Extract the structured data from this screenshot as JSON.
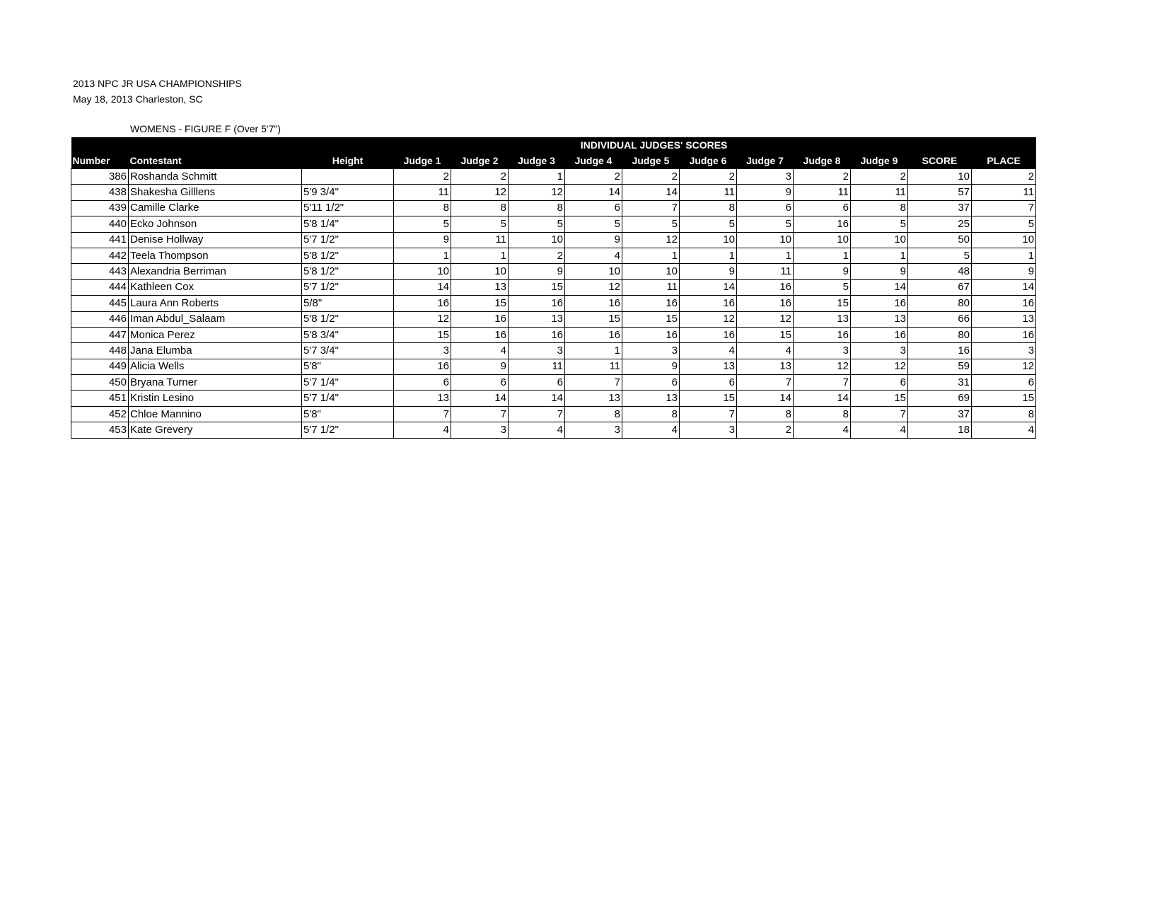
{
  "document": {
    "title": "2013 NPC JR USA CHAMPIONSHIPS",
    "subtitle": "May 18, 2013 Charleston, SC",
    "division": "WOMENS - FIGURE F (Over 5'7\")"
  },
  "table": {
    "group_header": "INDIVIDUAL JUDGES' SCORES",
    "columns": [
      "Number",
      "Contestant",
      "Height",
      "Judge 1",
      "Judge 2",
      "Judge 3",
      "Judge 4",
      "Judge 5",
      "Judge 6",
      "Judge 7",
      "Judge 8",
      "Judge 9",
      "SCORE",
      "PLACE"
    ],
    "rows": [
      [
        "386",
        "Roshanda Schmitt",
        "",
        "2",
        "2",
        "1",
        "2",
        "2",
        "2",
        "3",
        "2",
        "2",
        "10",
        "2"
      ],
      [
        "438",
        "Shakesha Gilllens",
        "5'9 3/4\"",
        "11",
        "12",
        "12",
        "14",
        "14",
        "11",
        "9",
        "11",
        "11",
        "57",
        "11"
      ],
      [
        "439",
        "Camille Clarke",
        "5'11 1/2\"",
        "8",
        "8",
        "8",
        "6",
        "7",
        "8",
        "6",
        "6",
        "8",
        "37",
        "7"
      ],
      [
        "440",
        "Ecko Johnson",
        "5'8 1/4\"",
        "5",
        "5",
        "5",
        "5",
        "5",
        "5",
        "5",
        "16",
        "5",
        "25",
        "5"
      ],
      [
        "441",
        "Denise Hollway",
        "5'7 1/2\"",
        "9",
        "11",
        "10",
        "9",
        "12",
        "10",
        "10",
        "10",
        "10",
        "50",
        "10"
      ],
      [
        "442",
        "Teela Thompson",
        "5'8 1/2\"",
        "1",
        "1",
        "2",
        "4",
        "1",
        "1",
        "1",
        "1",
        "1",
        "5",
        "1"
      ],
      [
        "443",
        "Alexandria Berriman",
        "5'8 1/2\"",
        "10",
        "10",
        "9",
        "10",
        "10",
        "9",
        "11",
        "9",
        "9",
        "48",
        "9"
      ],
      [
        "444",
        "Kathleen Cox",
        "5'7 1/2\"",
        "14",
        "13",
        "15",
        "12",
        "11",
        "14",
        "16",
        "5",
        "14",
        "67",
        "14"
      ],
      [
        "445",
        "Laura Ann Roberts",
        "5/8\"",
        "16",
        "15",
        "16",
        "16",
        "16",
        "16",
        "16",
        "15",
        "16",
        "80",
        "16"
      ],
      [
        "446",
        "Iman Abdul_Salaam",
        "5'8 1/2\"",
        "12",
        "16",
        "13",
        "15",
        "15",
        "12",
        "12",
        "13",
        "13",
        "66",
        "13"
      ],
      [
        "447",
        "Monica Perez",
        "5'8 3/4\"",
        "15",
        "16",
        "16",
        "16",
        "16",
        "16",
        "15",
        "16",
        "16",
        "80",
        "16"
      ],
      [
        "448",
        "Jana Elumba",
        "5'7 3/4\"",
        "3",
        "4",
        "3",
        "1",
        "3",
        "4",
        "4",
        "3",
        "3",
        "16",
        "3"
      ],
      [
        "449",
        "Alicia Wells",
        "5'8\"",
        "16",
        "9",
        "11",
        "11",
        "9",
        "13",
        "13",
        "12",
        "12",
        "59",
        "12"
      ],
      [
        "450",
        "Bryana Turner",
        "5'7 1/4\"",
        "6",
        "6",
        "6",
        "7",
        "6",
        "6",
        "7",
        "7",
        "6",
        "31",
        "6"
      ],
      [
        "451",
        "Kristin Lesino",
        "5'7 1/4\"",
        "13",
        "14",
        "14",
        "13",
        "13",
        "15",
        "14",
        "14",
        "15",
        "69",
        "15"
      ],
      [
        "452",
        "Chloe Mannino",
        "5'8\"",
        "7",
        "7",
        "7",
        "8",
        "8",
        "7",
        "8",
        "8",
        "7",
        "37",
        "8"
      ],
      [
        "453",
        "Kate Grevery",
        "5'7 1/2\"",
        "4",
        "3",
        "4",
        "3",
        "4",
        "3",
        "2",
        "4",
        "4",
        "18",
        "4"
      ]
    ]
  }
}
